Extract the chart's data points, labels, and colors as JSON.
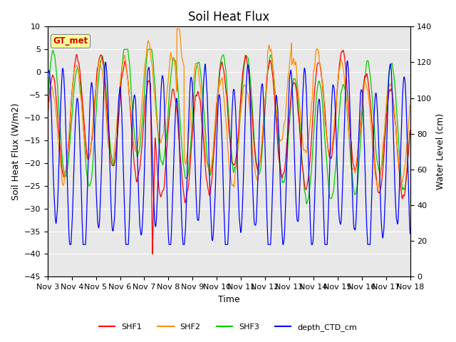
{
  "title": "Soil Heat Flux",
  "xlabel": "Time",
  "ylabel_left": "Soil Heat Flux (W/m2)",
  "ylabel_right": "Water Level (cm)",
  "xlim_days": [
    0,
    15
  ],
  "ylim_left": [
    -45,
    10
  ],
  "ylim_right": [
    0,
    140
  ],
  "x_tick_labels": [
    "Nov 3",
    "Nov 4",
    "Nov 5",
    "Nov 6",
    "Nov 7",
    "Nov 8",
    "Nov 9",
    "Nov 10",
    "Nov 11",
    "Nov 12",
    "Nov 13",
    "Nov 14",
    "Nov 15",
    "Nov 16",
    "Nov 17",
    "Nov 18"
  ],
  "colors": {
    "SHF1": "#ff0000",
    "SHF2": "#ff8c00",
    "SHF3": "#00cc00",
    "depth_CTD_cm": "#0000ff"
  },
  "legend_label": "GT_met",
  "legend_bg": "#ffff99",
  "legend_text_color": "#cc0000",
  "background_color": "#e8e8e8",
  "grid_color": "#ffffff",
  "title_fontsize": 12,
  "axis_fontsize": 9,
  "tick_fontsize": 8
}
